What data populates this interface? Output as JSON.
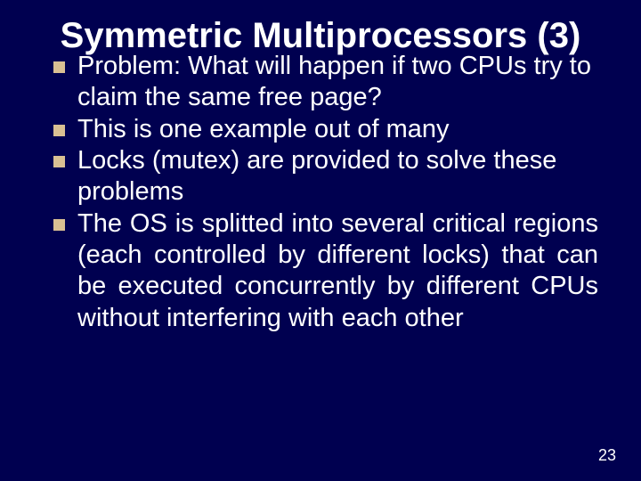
{
  "background_color": "#000050",
  "text_color": "#ffffff",
  "bullet_color": "#d9c093",
  "title_fontsize": 40,
  "body_fontsize": 29,
  "title": "Symmetric Multiprocessors (3)",
  "bullets": [
    {
      "text": "Problem: What will happen if two CPUs try to claim the same free page?",
      "justify": false
    },
    {
      "text": "This is one example out of many",
      "justify": false
    },
    {
      "text": "Locks (mutex) are provided to solve these problems",
      "justify": false
    },
    {
      "text": "The OS is splitted into several critical regions (each controlled by different locks) that can be executed concurrently by different CPUs without interfering with each other",
      "justify": true
    }
  ],
  "page_number": "23"
}
